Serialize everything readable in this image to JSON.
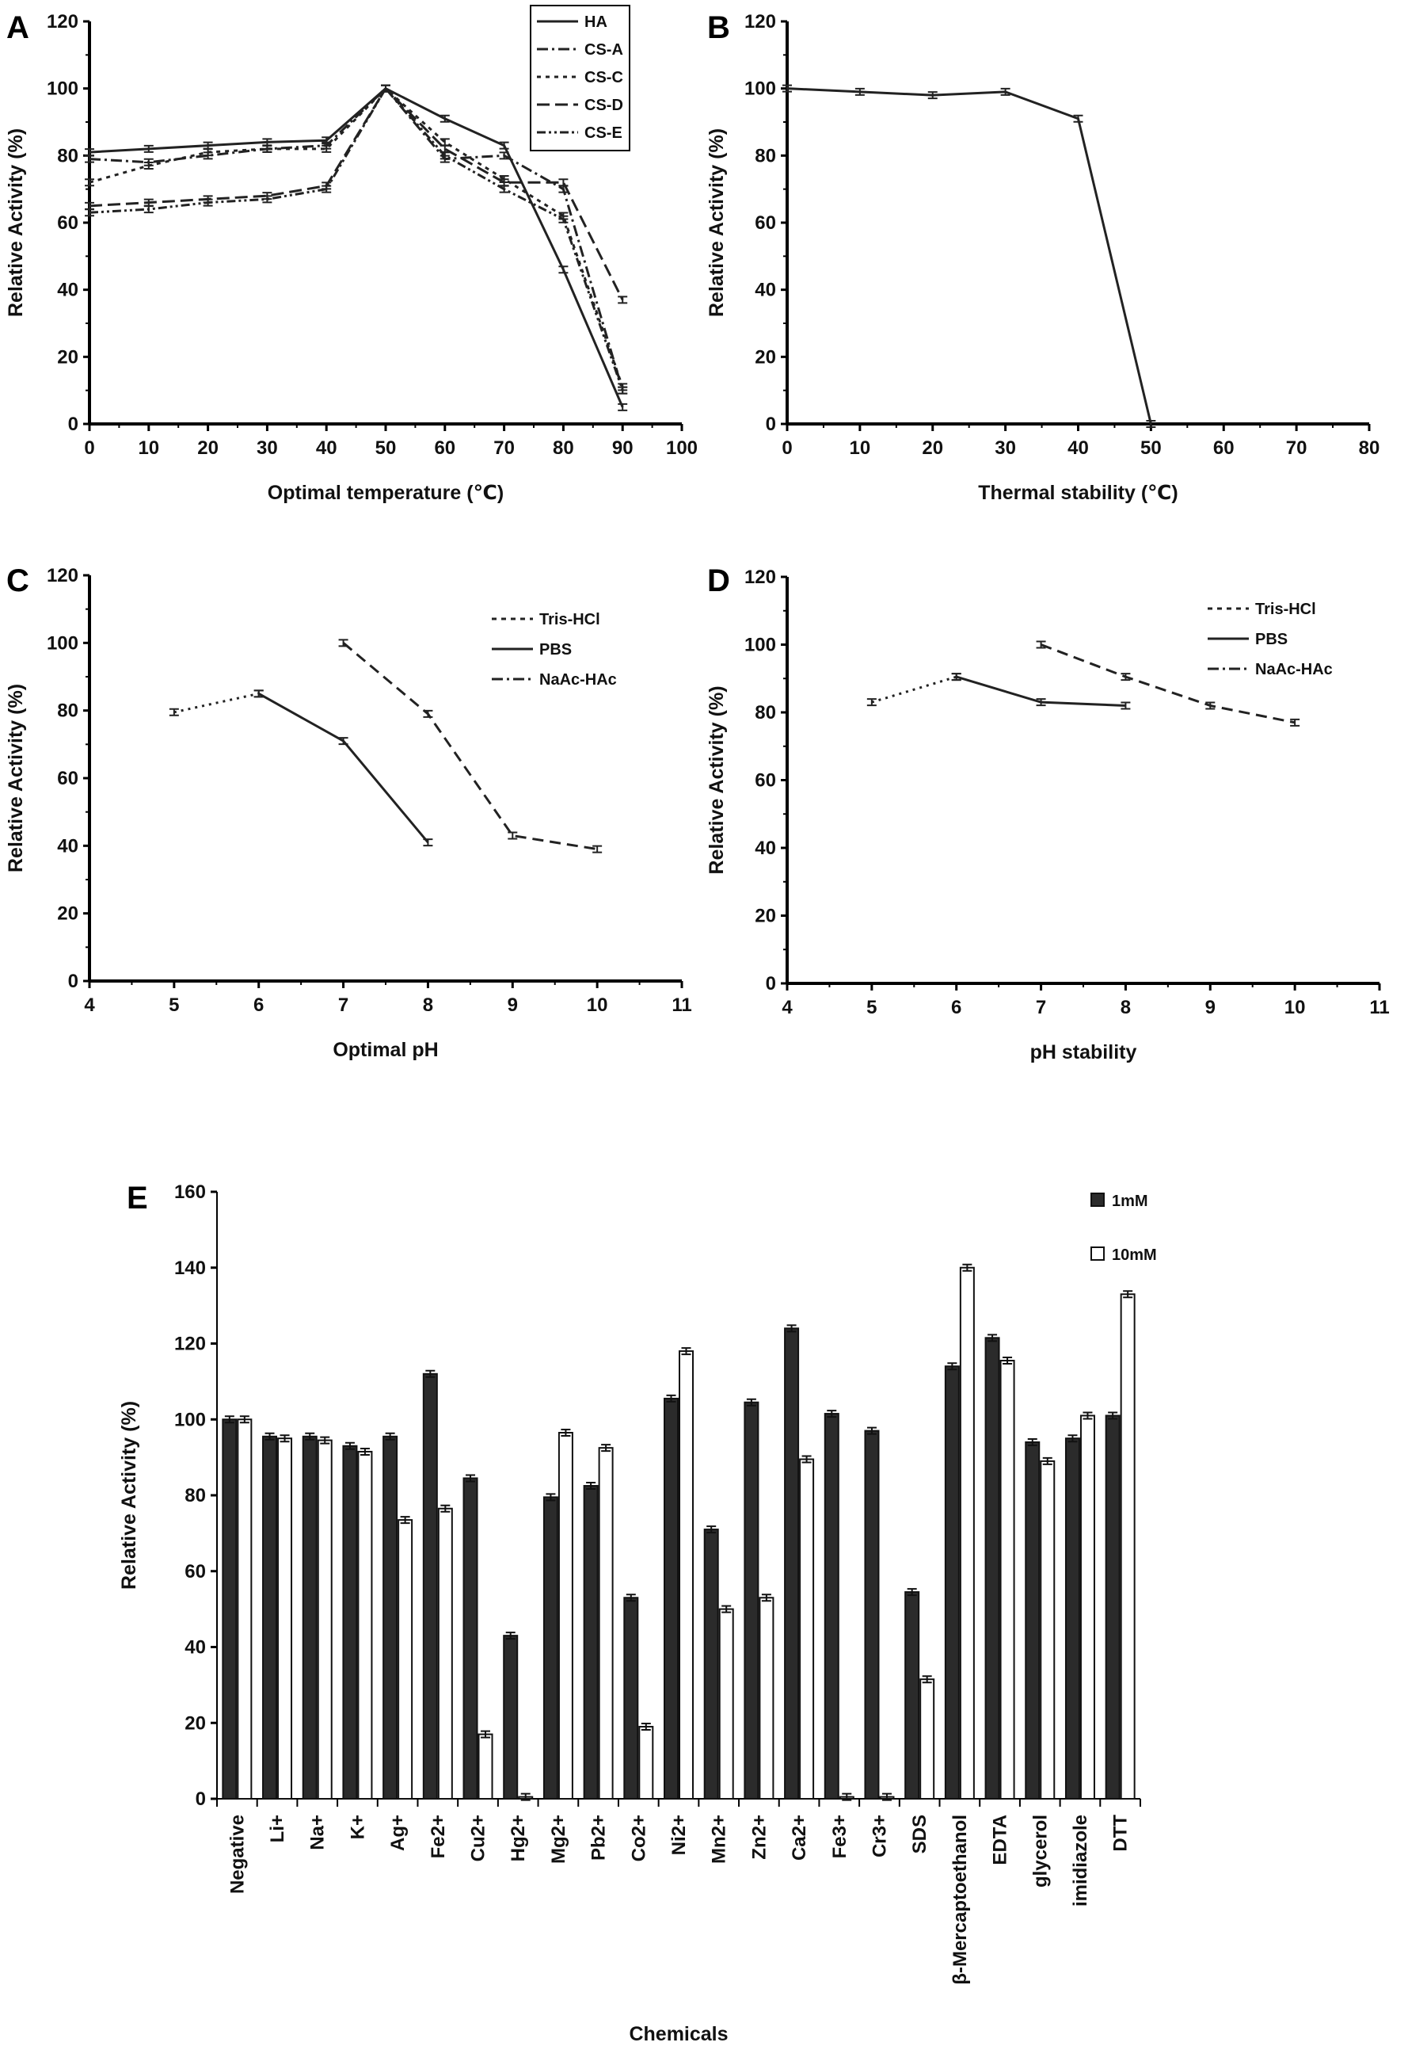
{
  "chart_data": [
    {
      "id": "A",
      "panel_label": "A",
      "type": "line",
      "xlabel": "Optimal temperature (℃)",
      "ylabel": "Relative Activity (%)",
      "xlim": [
        0,
        100
      ],
      "xstep": 10,
      "ylim": [
        0,
        120
      ],
      "ystep": 20,
      "x": [
        0,
        10,
        20,
        30,
        40,
        50,
        60,
        70,
        80,
        90
      ],
      "legend_position": "top-right",
      "series": [
        {
          "name": "HA",
          "values": [
            81,
            82,
            83,
            84,
            84.5,
            100,
            91,
            83,
            46,
            5
          ]
        },
        {
          "name": "CS-A",
          "values": [
            79,
            78,
            80,
            82,
            83,
            100,
            79,
            80,
            70,
            10
          ]
        },
        {
          "name": "CS-C",
          "values": [
            72,
            77,
            81,
            82,
            82,
            100,
            84,
            73,
            62,
            11
          ]
        },
        {
          "name": "CS-D",
          "values": [
            65,
            66,
            67,
            68,
            71,
            100,
            82,
            72,
            72,
            37
          ]
        },
        {
          "name": "CS-E",
          "values": [
            63,
            64,
            66,
            67,
            70,
            100,
            80,
            70,
            61,
            10
          ]
        }
      ]
    },
    {
      "id": "B",
      "panel_label": "B",
      "type": "line",
      "xlabel": "Thermal stability (℃)",
      "ylabel": "Relative Activity (%)",
      "xlim": [
        0,
        80
      ],
      "xstep": 10,
      "ylim": [
        0,
        120
      ],
      "ystep": 20,
      "x": [
        0,
        10,
        20,
        30,
        40,
        50
      ],
      "series": [
        {
          "name": "",
          "values": [
            100,
            99,
            98,
            99,
            91,
            0
          ]
        }
      ]
    },
    {
      "id": "C",
      "panel_label": "C",
      "type": "line",
      "xlabel": "Optimal pH",
      "ylabel": "Relative Activity (%)",
      "xlim": [
        4,
        11
      ],
      "xstep": 1,
      "ylim": [
        0,
        120
      ],
      "ystep": 20,
      "legend_position": "top-right",
      "series": [
        {
          "name": "Tris-HCl",
          "x": [
            7,
            8,
            9,
            10
          ],
          "values": [
            100,
            79,
            43,
            39
          ]
        },
        {
          "name": "PBS",
          "x": [
            6,
            7,
            8
          ],
          "values": [
            85,
            71,
            41
          ]
        },
        {
          "name": "NaAc-HAc",
          "x": [
            5,
            6
          ],
          "values": [
            79.5,
            85
          ]
        }
      ]
    },
    {
      "id": "D",
      "panel_label": "D",
      "type": "line",
      "xlabel": "pH stability",
      "ylabel": "Relative Activity (%)",
      "xlim": [
        4,
        11
      ],
      "xstep": 1,
      "ylim": [
        0,
        120
      ],
      "ystep": 20,
      "legend_position": "top-right",
      "series": [
        {
          "name": "Tris-HCl",
          "x": [
            7,
            8,
            9,
            10
          ],
          "values": [
            100,
            90.5,
            82,
            77
          ]
        },
        {
          "name": "PBS",
          "x": [
            6,
            7,
            8
          ],
          "values": [
            90.5,
            83,
            82
          ]
        },
        {
          "name": "NaAc-HAc",
          "x": [
            5,
            6
          ],
          "values": [
            83,
            90.5
          ]
        }
      ]
    },
    {
      "id": "E",
      "panel_label": "E",
      "type": "bar",
      "xlabel": "Chemicals",
      "ylabel": "Relative Activity  (%)",
      "ylim": [
        0,
        160
      ],
      "ystep": 20,
      "legend_position": "top-right",
      "categories": [
        "Negative",
        "Li+",
        "Na+",
        "K+",
        "Ag+",
        "Fe2+",
        "Cu2+",
        "Hg2+",
        "Mg2+",
        "Pb2+",
        "Co2+",
        "Ni2+",
        "Mn2+",
        "Zn2+",
        "Ca2+",
        "Fe3+",
        "Cr3+",
        "SDS",
        "β-Mercaptoethanol",
        "EDTA",
        "glycerol",
        "imidiazole",
        "DTT"
      ],
      "series": [
        {
          "name": "1mM",
          "color": "#2b2b2b",
          "values": [
            100,
            95.5,
            95.5,
            93,
            95.5,
            112,
            84.5,
            43,
            79.5,
            82.5,
            53,
            105.5,
            71,
            104.5,
            124,
            101.5,
            97,
            54.5,
            114,
            121.5,
            94,
            95,
            101
          ]
        },
        {
          "name": "10mM",
          "color": "#ffffff",
          "values": [
            100,
            95,
            94.5,
            91.5,
            73.5,
            76.5,
            17,
            0.5,
            96.5,
            92.5,
            19,
            118,
            50,
            53,
            89.5,
            0.5,
            0.5,
            31.5,
            140,
            115.5,
            89,
            101,
            133
          ]
        }
      ]
    }
  ]
}
